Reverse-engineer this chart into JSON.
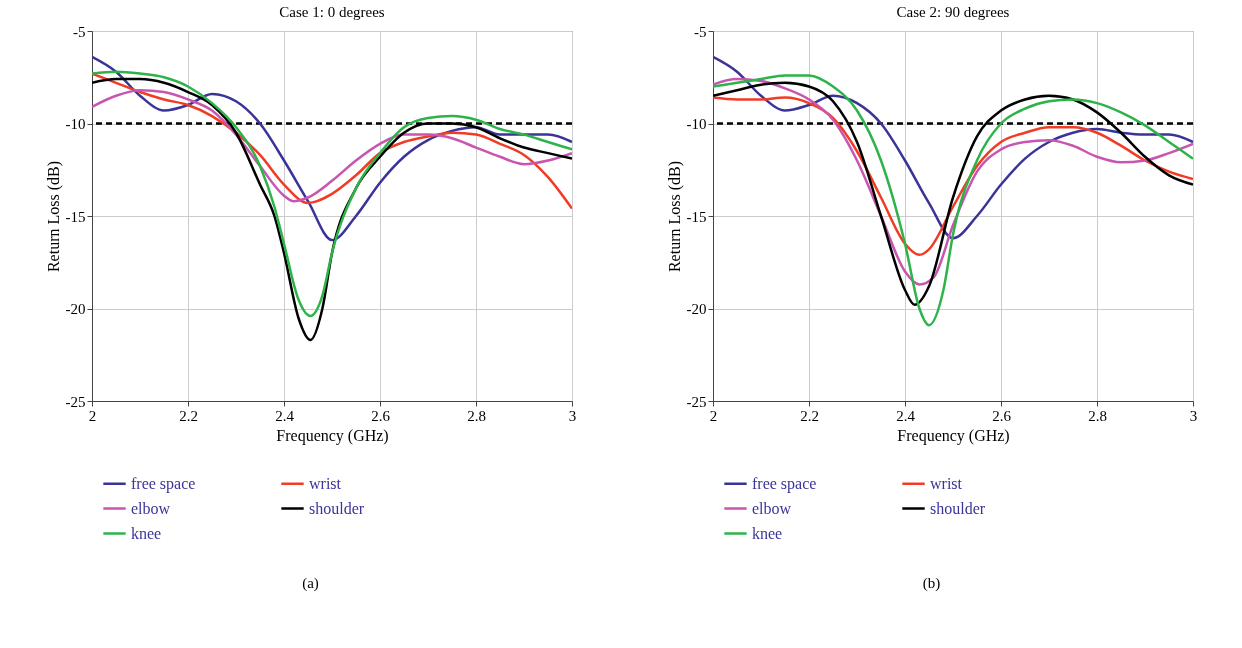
{
  "chart_data": [
    {
      "type": "line",
      "title": "Case 1: 0 degrees",
      "xlabel": "Frequency (GHz)",
      "ylabel": "Return Loss (dB)",
      "x": [
        2.0,
        2.05,
        2.1,
        2.15,
        2.2,
        2.25,
        2.3,
        2.35,
        2.4,
        2.45,
        2.5,
        2.55,
        2.6,
        2.65,
        2.7,
        2.75,
        2.8,
        2.85,
        2.9,
        2.95,
        3.0
      ],
      "series": [
        {
          "name": "free space",
          "color": "#3a3499",
          "values": [
            -6.4,
            -7.2,
            -8.5,
            -9.3,
            -9.0,
            -8.4,
            -8.8,
            -10.0,
            -12.0,
            -14.2,
            -16.3,
            -15.0,
            -13.2,
            -11.8,
            -10.9,
            -10.4,
            -10.2,
            -10.6,
            -10.6,
            -10.6,
            -11.0
          ]
        },
        {
          "name": "wrist",
          "color": "#f03c24",
          "values": [
            -7.3,
            -7.8,
            -8.3,
            -8.7,
            -9.0,
            -9.6,
            -10.5,
            -11.7,
            -13.3,
            -14.3,
            -13.8,
            -12.8,
            -11.6,
            -11.0,
            -10.7,
            -10.5,
            -10.6,
            -11.1,
            -11.7,
            -12.9,
            -14.6
          ]
        },
        {
          "name": "elbow",
          "color": "#c855b0",
          "x": [
            2.0,
            2.05,
            2.1,
            2.15,
            2.2,
            2.25,
            2.3,
            2.35,
            2.4,
            2.42,
            2.45,
            2.5,
            2.55,
            2.6,
            2.65,
            2.7,
            2.75,
            2.8,
            2.85,
            2.9,
            2.95,
            3.0
          ],
          "values": [
            -9.1,
            -8.5,
            -8.2,
            -8.3,
            -8.7,
            -9.3,
            -10.6,
            -12.3,
            -13.9,
            -14.2,
            -14.0,
            -13.1,
            -12.0,
            -11.1,
            -10.6,
            -10.6,
            -10.8,
            -11.3,
            -11.8,
            -12.2,
            -12.0,
            -11.6
          ]
        },
        {
          "name": "shoulder",
          "color": "#000000",
          "x": [
            2.0,
            2.05,
            2.1,
            2.15,
            2.2,
            2.25,
            2.3,
            2.35,
            2.38,
            2.4,
            2.43,
            2.455,
            2.48,
            2.5,
            2.55,
            2.6,
            2.65,
            2.7,
            2.75,
            2.8,
            2.85,
            2.9,
            2.95,
            3.0
          ],
          "values": [
            -7.8,
            -7.6,
            -7.6,
            -7.8,
            -8.3,
            -9.0,
            -10.5,
            -13.3,
            -15.0,
            -17.0,
            -20.5,
            -21.7,
            -20.0,
            -17.0,
            -13.5,
            -11.8,
            -10.5,
            -10.0,
            -10.0,
            -10.2,
            -10.8,
            -11.3,
            -11.6,
            -11.9
          ]
        },
        {
          "name": "knee",
          "color": "#2db34a",
          "x": [
            2.0,
            2.05,
            2.1,
            2.15,
            2.2,
            2.25,
            2.3,
            2.35,
            2.38,
            2.4,
            2.43,
            2.455,
            2.48,
            2.5,
            2.55,
            2.6,
            2.65,
            2.7,
            2.75,
            2.8,
            2.85,
            2.9,
            2.95,
            3.0
          ],
          "values": [
            -7.3,
            -7.2,
            -7.3,
            -7.5,
            -8.0,
            -8.9,
            -10.2,
            -12.3,
            -14.5,
            -16.5,
            -19.5,
            -20.4,
            -19.3,
            -17.0,
            -13.5,
            -11.6,
            -10.2,
            -9.7,
            -9.6,
            -9.8,
            -10.3,
            -10.6,
            -11.0,
            -11.4
          ]
        }
      ],
      "xlim": [
        2,
        3
      ],
      "xticks": [
        2,
        2.2,
        2.4,
        2.6,
        2.8,
        3
      ],
      "ylim": [
        -25,
        -5
      ],
      "yticks": [
        -25,
        -20,
        -15,
        -10,
        -5
      ],
      "ref_lines": [
        {
          "axis": "y",
          "value": -10,
          "color": "#000000",
          "line_style": "dashed"
        }
      ],
      "grid": true,
      "legend": "bottom",
      "annotations": [
        "(a)"
      ]
    },
    {
      "type": "line",
      "title": "Case 2: 90 degrees",
      "xlabel": "Frequency (GHz)",
      "ylabel": "Return Loss (dB)",
      "x": [
        2.0,
        2.05,
        2.1,
        2.15,
        2.2,
        2.25,
        2.3,
        2.35,
        2.4,
        2.45,
        2.5,
        2.55,
        2.6,
        2.65,
        2.7,
        2.75,
        2.8,
        2.85,
        2.9,
        2.95,
        3.0
      ],
      "series": [
        {
          "name": "free space",
          "color": "#3a3499",
          "values": [
            -6.4,
            -7.2,
            -8.5,
            -9.3,
            -9.0,
            -8.5,
            -8.9,
            -10.0,
            -12.0,
            -14.3,
            -16.2,
            -15.0,
            -13.3,
            -11.9,
            -11.0,
            -10.5,
            -10.3,
            -10.5,
            -10.6,
            -10.6,
            -11.0
          ]
        },
        {
          "name": "wrist",
          "color": "#f03c24",
          "x": [
            2.0,
            2.05,
            2.1,
            2.15,
            2.2,
            2.25,
            2.3,
            2.35,
            2.4,
            2.43,
            2.45,
            2.5,
            2.55,
            2.6,
            2.65,
            2.7,
            2.75,
            2.8,
            2.85,
            2.9,
            2.95,
            3.0
          ],
          "values": [
            -8.6,
            -8.7,
            -8.7,
            -8.6,
            -8.9,
            -9.7,
            -11.5,
            -14.0,
            -16.5,
            -17.1,
            -16.8,
            -14.5,
            -12.3,
            -11.0,
            -10.5,
            -10.2,
            -10.2,
            -10.5,
            -11.2,
            -12.0,
            -12.6,
            -13.0
          ]
        },
        {
          "name": "elbow",
          "color": "#c855b0",
          "x": [
            2.0,
            2.05,
            2.1,
            2.15,
            2.2,
            2.25,
            2.3,
            2.35,
            2.4,
            2.43,
            2.46,
            2.5,
            2.55,
            2.6,
            2.65,
            2.7,
            2.75,
            2.8,
            2.85,
            2.9,
            2.95,
            3.0
          ],
          "values": [
            -7.9,
            -7.6,
            -7.7,
            -8.1,
            -8.7,
            -9.8,
            -12.0,
            -15.0,
            -18.0,
            -18.7,
            -18.3,
            -15.5,
            -12.6,
            -11.4,
            -11.0,
            -10.9,
            -11.2,
            -11.8,
            -12.1,
            -12.0,
            -11.6,
            -11.1
          ]
        },
        {
          "name": "shoulder",
          "color": "#000000",
          "x": [
            2.0,
            2.05,
            2.1,
            2.15,
            2.2,
            2.25,
            2.3,
            2.35,
            2.4,
            2.42,
            2.45,
            2.5,
            2.55,
            2.6,
            2.65,
            2.7,
            2.75,
            2.8,
            2.85,
            2.9,
            2.95,
            3.0
          ],
          "values": [
            -8.5,
            -8.2,
            -7.9,
            -7.8,
            -8.0,
            -8.8,
            -11.0,
            -15.0,
            -19.0,
            -19.8,
            -18.8,
            -14.0,
            -10.7,
            -9.3,
            -8.7,
            -8.5,
            -8.7,
            -9.4,
            -10.5,
            -11.8,
            -12.8,
            -13.3
          ]
        },
        {
          "name": "knee",
          "color": "#2db34a",
          "x": [
            2.0,
            2.05,
            2.1,
            2.15,
            2.2,
            2.25,
            2.3,
            2.35,
            2.4,
            2.43,
            2.45,
            2.48,
            2.5,
            2.55,
            2.6,
            2.65,
            2.7,
            2.75,
            2.8,
            2.85,
            2.9,
            2.95,
            3.0
          ],
          "values": [
            -8.0,
            -7.8,
            -7.6,
            -7.4,
            -7.4,
            -8.0,
            -9.3,
            -12.0,
            -16.5,
            -20.0,
            -20.9,
            -19.0,
            -16.0,
            -12.0,
            -10.0,
            -9.2,
            -8.8,
            -8.7,
            -8.9,
            -9.4,
            -10.1,
            -11.0,
            -11.9
          ]
        }
      ],
      "xlim": [
        2,
        3
      ],
      "xticks": [
        2,
        2.2,
        2.4,
        2.6,
        2.8,
        3
      ],
      "ylim": [
        -25,
        -5
      ],
      "yticks": [
        -25,
        -20,
        -15,
        -10,
        -5
      ],
      "ref_lines": [
        {
          "axis": "y",
          "value": -10,
          "color": "#000000",
          "line_style": "dashed"
        }
      ],
      "grid": true,
      "legend": "bottom",
      "annotations": [
        "(b)"
      ]
    }
  ]
}
